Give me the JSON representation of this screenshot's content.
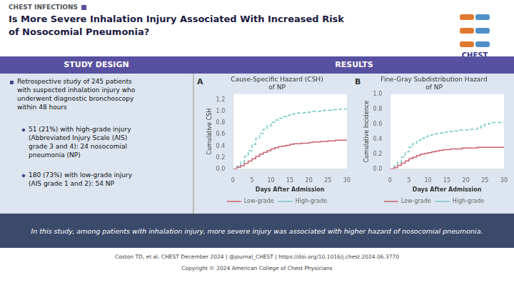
{
  "title": "Is More Severe Inhalation Injury Associated With Increased Risk\nof Nosocomial Pneumonia?",
  "annotations": [
    "CHEST INFECTIONS",
    "CHEST",
    "STUDY DESIGN",
    "RESULTS",
    "Retrospective study of 245 patients\nwith suspected inhalation injury who\nunderwent diagnostic bronchoscopy\nwithin 48 hours",
    "51 (21%) with high-grade injury\n(Abbreviated Injury Scale (AIS)\ngrade 3 and 4): 24 nosocomial\npneumonia (NP)",
    "180 (73%) with low-grade injury\n(AIS grade 1 and 2): 54 NP",
    "In this study, among patients with inhalation injury, more severe injury was associated with higher hazard of nosocomial pneumonia.",
    "Coston TD, et al. CHEST December 2024  |  @journal_CHEST  |  https://doi.org/10.1016/j.chest.2024.06.3770",
    "Copyright © 2024 American College of Chest Physicians"
  ],
  "chart_data": [
    {
      "type": "line",
      "title": "Cause-Specific Hazard (CSH)\nof NP",
      "annotations": [
        "A"
      ],
      "x_label": "Days After Admission",
      "y_label": "Cumulative CSH",
      "x": [
        0,
        1,
        2,
        3,
        4,
        5,
        6,
        7,
        8,
        9,
        10,
        11,
        12,
        13,
        14,
        15,
        16,
        17,
        18,
        19,
        20,
        21,
        22,
        23,
        24,
        25,
        26,
        27,
        28,
        29,
        30
      ],
      "series": [
        {
          "name": "Low-grade",
          "color": "#c96070",
          "line_style": "solid",
          "values": [
            0.0,
            0.03,
            0.06,
            0.1,
            0.14,
            0.18,
            0.22,
            0.26,
            0.29,
            0.32,
            0.35,
            0.37,
            0.39,
            0.4,
            0.41,
            0.43,
            0.44,
            0.44,
            0.45,
            0.45,
            0.46,
            0.47,
            0.47,
            0.48,
            0.48,
            0.49,
            0.49,
            0.5,
            0.5,
            0.5,
            0.5
          ]
        },
        {
          "name": "High-grade",
          "color": "#70c8c8",
          "line_style": "dashed",
          "values": [
            0.0,
            0.05,
            0.12,
            0.22,
            0.32,
            0.43,
            0.53,
            0.62,
            0.69,
            0.75,
            0.81,
            0.85,
            0.88,
            0.91,
            0.93,
            0.95,
            0.96,
            0.97,
            0.97,
            0.98,
            0.99,
            1.0,
            1.0,
            1.01,
            1.02,
            1.02,
            1.03,
            1.03,
            1.04,
            1.04,
            1.05
          ]
        }
      ],
      "xlim": [
        0,
        30
      ],
      "xticks": [
        0,
        5,
        10,
        15,
        20,
        25,
        30
      ],
      "ylim": [
        0.0,
        1.3
      ],
      "yticks": [
        {
          "value": 0.0,
          "label": "0.0"
        },
        0.2,
        0.4,
        0.6,
        0.8,
        {
          "value": 1.0,
          "label": "1.0"
        },
        1.2
      ],
      "grid": false,
      "legend": "bottom"
    },
    {
      "type": "line",
      "title": "Fine-Gray Subdistribution Hazard\nof NP",
      "annotations": [
        "B"
      ],
      "x_label": "Days After Admission",
      "y_label": "Cumulative Incidence",
      "x": [
        0,
        1,
        2,
        3,
        4,
        5,
        6,
        7,
        8,
        9,
        10,
        11,
        12,
        13,
        14,
        15,
        16,
        17,
        18,
        19,
        20,
        21,
        22,
        23,
        24,
        25,
        26,
        27,
        28,
        29,
        30
      ],
      "series": [
        {
          "name": "Low-grade",
          "color": "#c96070",
          "line_style": "solid",
          "values": [
            0.0,
            0.02,
            0.05,
            0.08,
            0.11,
            0.14,
            0.16,
            0.18,
            0.2,
            0.21,
            0.22,
            0.23,
            0.24,
            0.25,
            0.26,
            0.26,
            0.27,
            0.27,
            0.27,
            0.28,
            0.28,
            0.28,
            0.28,
            0.29,
            0.29,
            0.29,
            0.29,
            0.29,
            0.29,
            0.29,
            0.29
          ]
        },
        {
          "name": "High-grade",
          "color": "#70c8c8",
          "line_style": "dashed",
          "values": [
            0.0,
            0.04,
            0.09,
            0.16,
            0.23,
            0.29,
            0.34,
            0.38,
            0.41,
            0.43,
            0.45,
            0.46,
            0.47,
            0.48,
            0.49,
            0.5,
            0.5,
            0.51,
            0.52,
            0.52,
            0.52,
            0.53,
            0.53,
            0.55,
            0.58,
            0.6,
            0.61,
            0.62,
            0.62,
            0.62,
            0.62
          ]
        }
      ],
      "xlim": [
        0,
        30
      ],
      "xticks": [
        0,
        5,
        10,
        15,
        20,
        25,
        30
      ],
      "ylim": [
        0.0,
        1.0
      ],
      "yticks": [
        {
          "value": 0.0,
          "label": "0.0"
        },
        0.2,
        0.4,
        0.6,
        0.8,
        {
          "value": 1.0,
          "label": "1.0"
        }
      ],
      "grid": false,
      "legend": "bottom"
    }
  ]
}
